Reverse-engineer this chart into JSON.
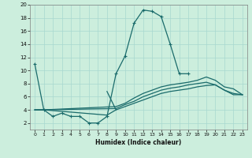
{
  "xlabel": "Humidex (Indice chaleur)",
  "bg_color": "#cceedd",
  "line_color": "#1a6b6b",
  "xlim": [
    -0.5,
    23.5
  ],
  "ylim": [
    1,
    20
  ],
  "xticks": [
    0,
    1,
    2,
    3,
    4,
    5,
    6,
    7,
    8,
    9,
    10,
    11,
    12,
    13,
    14,
    15,
    16,
    17,
    18,
    19,
    20,
    21,
    22,
    23
  ],
  "yticks": [
    2,
    4,
    6,
    8,
    10,
    12,
    14,
    16,
    18,
    20
  ],
  "curve1_x": [
    0,
    1,
    2,
    3,
    4,
    5,
    6,
    7,
    8,
    9,
    10,
    11,
    12,
    13,
    14,
    15,
    16,
    17
  ],
  "curve1_y": [
    11,
    4,
    3,
    3.5,
    3,
    3,
    2,
    2,
    3,
    9.5,
    12.2,
    17.2,
    19.2,
    19.0,
    18.2,
    14,
    9.5,
    9.5
  ],
  "curve2_x": [
    0,
    1,
    9,
    10,
    11,
    12,
    13,
    14,
    15,
    16,
    17,
    18,
    19,
    20,
    21,
    22,
    23
  ],
  "curve2_y": [
    4,
    4,
    4.5,
    5.0,
    5.8,
    6.5,
    7.0,
    7.5,
    7.8,
    8.0,
    8.2,
    8.5,
    9.0,
    8.5,
    7.5,
    7.2,
    6.3
  ],
  "curve3_x": [
    0,
    1,
    9,
    10,
    11,
    12,
    13,
    14,
    15,
    16,
    17,
    18,
    19,
    20,
    21,
    22,
    23
  ],
  "curve3_y": [
    4,
    4,
    4.2,
    4.8,
    5.3,
    6.0,
    6.5,
    7.0,
    7.3,
    7.5,
    7.8,
    8.0,
    8.2,
    7.8,
    7.0,
    6.5,
    6.3
  ],
  "curve4_x": [
    0,
    1,
    8,
    9,
    10,
    11,
    12,
    13,
    14,
    15,
    16,
    17,
    18,
    19,
    20,
    21,
    22,
    23
  ],
  "curve4_y": [
    4,
    4,
    3.2,
    4.0,
    4.5,
    5.0,
    5.5,
    6.0,
    6.5,
    6.8,
    7.0,
    7.2,
    7.5,
    7.7,
    7.8,
    7.0,
    6.3,
    6.3
  ],
  "curve5_x": [
    8,
    9
  ],
  "curve5_y": [
    6.8,
    4.0
  ]
}
